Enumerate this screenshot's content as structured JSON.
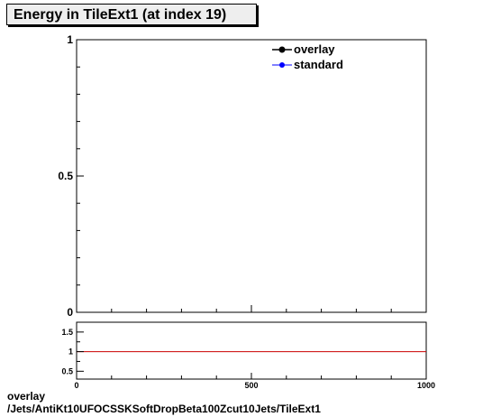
{
  "title": "Energy in TileExt1 (at index 19)",
  "footer": {
    "line1": "overlay",
    "line2": "/Jets/AntiKt10UFOCSSKSoftDropBeta100Zcut10Jets/TileExt1"
  },
  "colors": {
    "overlay": "#000000",
    "standard": "#0000ff",
    "ratio_line": "#cc0000"
  },
  "chart_data": [
    {
      "type": "line",
      "title": "Energy in TileExt1 (at index 19)",
      "xlabel": "",
      "ylabel": "",
      "xlim": [
        0,
        1000
      ],
      "ylim": [
        0,
        1
      ],
      "y_ticks": [
        {
          "value": 0,
          "label": "0"
        },
        {
          "value": 0.5,
          "label": "0.5"
        },
        {
          "value": 1,
          "label": "1"
        }
      ],
      "legend": {
        "placement": "top-right",
        "entries": [
          {
            "name": "overlay",
            "color": "#000000"
          },
          {
            "name": "standard",
            "color": "#0000ff"
          }
        ]
      },
      "series": [
        {
          "name": "overlay",
          "values": []
        },
        {
          "name": "standard",
          "values": []
        }
      ],
      "grid": false
    },
    {
      "type": "line",
      "xlim": [
        0,
        1000
      ],
      "ylim": [
        0.3,
        1.75
      ],
      "x_ticks": [
        {
          "value": 0,
          "label": "0"
        },
        {
          "value": 500,
          "label": "500"
        },
        {
          "value": 1000,
          "label": "1000"
        }
      ],
      "y_ticks": [
        {
          "value": 0.5,
          "label": "0.5"
        },
        {
          "value": 1,
          "label": "1"
        },
        {
          "value": 1.5,
          "label": "1.5"
        }
      ],
      "reference_line": 1,
      "grid": false
    }
  ]
}
